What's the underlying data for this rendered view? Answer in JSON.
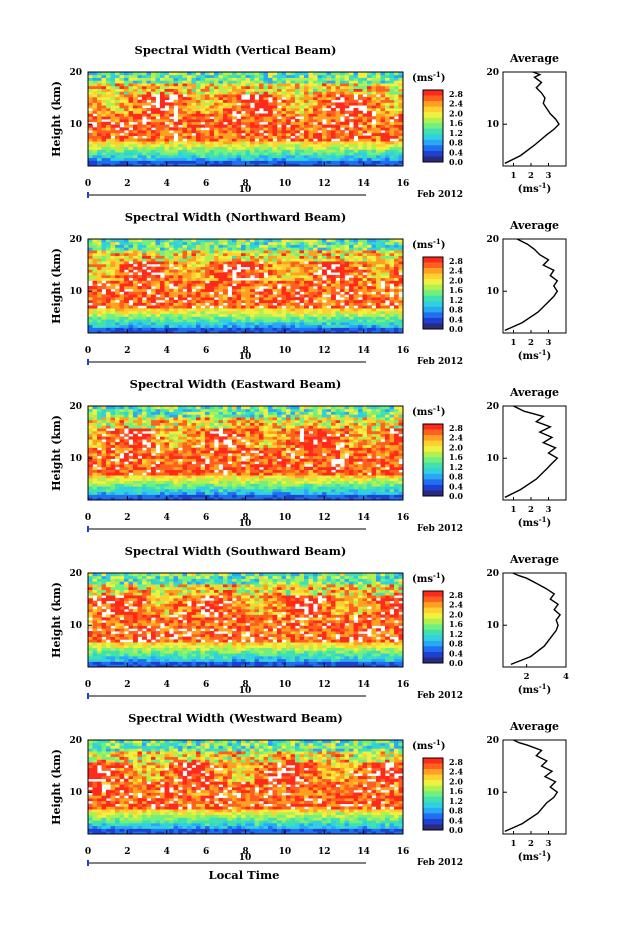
{
  "figure": {
    "date_label": "Feb 2012",
    "xlabel": "Local Time",
    "ylabel": "Height (km)",
    "day_label": "10",
    "avg_title": "Average",
    "unit_label": "(ms",
    "unit_exp": "-1",
    "unit_close": ")"
  },
  "colorbar": {
    "ticks": [
      "2.8",
      "2.4",
      "2.0",
      "1.6",
      "1.2",
      "0.8",
      "0.4",
      "0.0"
    ],
    "colors": [
      "#2a2a80",
      "#1f3fd0",
      "#1f6ff0",
      "#2aa8f5",
      "#30d0e0",
      "#40e0b0",
      "#70f080",
      "#b0f050",
      "#f0f040",
      "#ffd030",
      "#ffa020",
      "#ff6020",
      "#ff2a1a"
    ]
  },
  "chart_data": [
    {
      "type": "heatmap",
      "title": "Spectral Width (Vertical Beam)",
      "xlabel": "",
      "ylabel": "Height (km)",
      "xlim": [
        0,
        16
      ],
      "ylim": [
        2,
        20
      ],
      "data_xlim": [
        0,
        16
      ],
      "x_ticks": [
        "0",
        "2",
        "4",
        "6",
        "8",
        "10",
        "12",
        "14",
        "16"
      ],
      "y_ticks": [
        "20",
        "10"
      ],
      "zlim": [
        0,
        3
      ],
      "avg": {
        "xlim": [
          0.4,
          4
        ],
        "x_ticks": [
          "1",
          "2",
          "3"
        ],
        "heights": [
          2.5,
          4,
          6,
          8,
          9,
          10,
          11,
          12,
          13,
          14,
          15,
          16,
          17,
          18,
          19,
          19.5,
          20
        ],
        "values": [
          0.5,
          1.4,
          2.2,
          2.9,
          3.3,
          3.6,
          3.4,
          3.1,
          2.9,
          2.7,
          2.8,
          2.6,
          2.3,
          2.6,
          2.2,
          2.5,
          2.1
        ]
      }
    },
    {
      "type": "heatmap",
      "title": "Spectral Width (Northward Beam)",
      "xlabel": "",
      "ylabel": "Height (km)",
      "xlim": [
        0,
        16
      ],
      "ylim": [
        2,
        20
      ],
      "data_xlim": [
        0,
        16
      ],
      "x_ticks": [
        "0",
        "2",
        "4",
        "6",
        "8",
        "10",
        "12",
        "14",
        "16"
      ],
      "y_ticks": [
        "20",
        "10"
      ],
      "zlim": [
        0,
        3
      ],
      "avg": {
        "xlim": [
          0.4,
          4
        ],
        "x_ticks": [
          "1",
          "2",
          "3"
        ],
        "heights": [
          2.5,
          4,
          6,
          8,
          9,
          10,
          11,
          12,
          13,
          14,
          15,
          16,
          17,
          18,
          19,
          19.5,
          20
        ],
        "values": [
          0.5,
          1.5,
          2.4,
          3.0,
          3.3,
          3.5,
          3.3,
          3.5,
          3.1,
          3.3,
          2.7,
          3.0,
          2.5,
          2.2,
          1.8,
          1.5,
          1.2
        ]
      }
    },
    {
      "type": "heatmap",
      "title": "Spectral Width (Eastward Beam)",
      "xlabel": "",
      "ylabel": "Height (km)",
      "xlim": [
        0,
        16
      ],
      "ylim": [
        2,
        20
      ],
      "data_xlim": [
        0,
        16
      ],
      "x_ticks": [
        "0",
        "2",
        "4",
        "6",
        "8",
        "10",
        "12",
        "14",
        "16"
      ],
      "y_ticks": [
        "20",
        "10"
      ],
      "zlim": [
        0,
        3
      ],
      "avg": {
        "xlim": [
          0.4,
          4
        ],
        "x_ticks": [
          "1",
          "2",
          "3"
        ],
        "heights": [
          2.5,
          4,
          6,
          8,
          9,
          10,
          11,
          12,
          13,
          14,
          15,
          16,
          17,
          18,
          19,
          19.5,
          20
        ],
        "values": [
          0.5,
          1.4,
          2.3,
          2.9,
          3.2,
          3.5,
          3.0,
          3.4,
          2.7,
          3.2,
          2.5,
          3.1,
          2.3,
          2.7,
          1.6,
          1.3,
          1.0
        ]
      }
    },
    {
      "type": "heatmap",
      "title": "Spectral Width (Southward Beam)",
      "xlabel": "",
      "ylabel": "Height (km)",
      "xlim": [
        0,
        16
      ],
      "ylim": [
        2,
        20
      ],
      "data_xlim": [
        0,
        16
      ],
      "x_ticks": [
        "0",
        "2",
        "4",
        "6",
        "8",
        "10",
        "12",
        "14",
        "16"
      ],
      "y_ticks": [
        "20",
        "10"
      ],
      "zlim": [
        0,
        3
      ],
      "avg": {
        "xlim": [
          0.8,
          4
        ],
        "x_ticks": [
          "2",
          "4"
        ],
        "heights": [
          2.5,
          4,
          6,
          8,
          9,
          10,
          11,
          12,
          13,
          14,
          15,
          16,
          17,
          18,
          19,
          19.5,
          20
        ],
        "values": [
          1.2,
          2.2,
          2.9,
          3.3,
          3.5,
          3.6,
          3.5,
          3.7,
          3.4,
          3.6,
          3.2,
          3.4,
          3.0,
          2.5,
          2.0,
          1.6,
          1.3
        ]
      }
    },
    {
      "type": "heatmap",
      "title": "Spectral Width (Westward Beam)",
      "xlabel": "Local Time",
      "ylabel": "Height (km)",
      "xlim": [
        0,
        16
      ],
      "ylim": [
        2,
        20
      ],
      "data_xlim": [
        0,
        16
      ],
      "x_ticks": [
        "0",
        "2",
        "4",
        "6",
        "8",
        "10",
        "12",
        "14",
        "16"
      ],
      "y_ticks": [
        "20",
        "10"
      ],
      "zlim": [
        0,
        3
      ],
      "avg": {
        "xlim": [
          0.4,
          4
        ],
        "x_ticks": [
          "1",
          "2",
          "3"
        ],
        "heights": [
          2.5,
          4,
          6,
          8,
          9,
          10,
          11,
          12,
          13,
          14,
          15,
          16,
          17,
          18,
          19,
          19.5,
          20
        ],
        "values": [
          0.5,
          1.5,
          2.4,
          2.9,
          3.3,
          3.5,
          3.1,
          3.4,
          2.8,
          3.2,
          2.6,
          2.9,
          2.3,
          2.6,
          1.8,
          1.3,
          1.0
        ]
      }
    }
  ]
}
